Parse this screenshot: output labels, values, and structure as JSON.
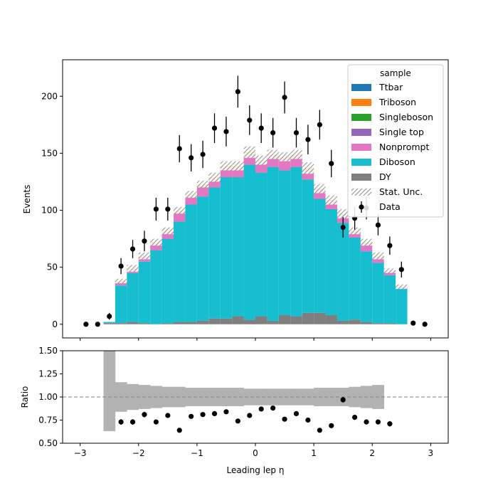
{
  "chart_data": [
    {
      "type": "bar",
      "stacked": true,
      "bin_edges": [
        -2.6,
        -2.4,
        -2.2,
        -2.0,
        -1.8,
        -1.6,
        -1.4,
        -1.2,
        -1.0,
        -0.8,
        -0.6,
        -0.4,
        -0.2,
        0.0,
        0.2,
        0.4,
        0.6,
        0.8,
        1.0,
        1.2,
        1.4,
        1.6,
        1.8,
        2.0,
        2.2,
        2.4,
        2.6
      ],
      "xlim": [
        -3.3,
        3.3
      ],
      "ylim": [
        -12,
        232
      ],
      "xticks": [
        -3,
        -2,
        -1,
        0,
        1,
        2,
        3
      ],
      "yticks": [
        0,
        50,
        100,
        150,
        200
      ],
      "ylabel": "Events",
      "legend": {
        "title": "sample",
        "placement": "top-right",
        "stat_unc_label": "Stat. Unc.",
        "data_label": "Data"
      },
      "series": [
        {
          "name": "DY",
          "color": "#7f7f7f",
          "values": [
            1,
            1,
            2,
            1,
            0,
            1,
            2,
            2,
            3,
            5,
            5,
            7,
            4,
            7,
            3,
            8,
            7,
            10,
            10,
            8,
            3,
            4,
            2,
            1,
            1,
            0
          ]
        },
        {
          "name": "Diboson",
          "color": "#17becf",
          "values": [
            1,
            33,
            43,
            54,
            65,
            74,
            88,
            103,
            109,
            115,
            124,
            122,
            136,
            126,
            135,
            127,
            131,
            117,
            100,
            93,
            86,
            72,
            62,
            53,
            42,
            31
          ]
        },
        {
          "name": "Nonprompt",
          "color": "#e377c2",
          "values": [
            0,
            2,
            3,
            3,
            5,
            5,
            7,
            6,
            8,
            6,
            7,
            7,
            8,
            8,
            8,
            9,
            8,
            7,
            7,
            5,
            6,
            4,
            6,
            4,
            3,
            1
          ]
        },
        {
          "name": "Single top",
          "color": "#9467bd",
          "values": [
            0,
            0,
            0,
            0,
            0,
            0,
            0,
            0,
            0,
            0,
            0,
            0,
            0,
            0,
            0,
            0,
            0,
            0,
            0,
            0,
            0,
            0,
            0,
            0,
            0,
            0
          ]
        },
        {
          "name": "Singleboson",
          "color": "#2ca02c",
          "values": [
            0,
            1,
            0,
            1,
            1,
            1,
            1,
            1,
            1,
            1,
            1,
            1,
            1,
            1,
            1,
            1,
            1,
            1,
            1,
            1,
            1,
            1,
            1,
            1,
            0,
            0
          ]
        },
        {
          "name": "Triboson",
          "color": "#ff7f0e",
          "values": [
            0,
            1,
            1,
            1,
            1,
            1,
            2,
            2,
            2,
            2,
            2,
            2,
            2,
            2,
            2,
            2,
            2,
            2,
            1,
            2,
            1,
            1,
            1,
            1,
            1,
            1
          ]
        },
        {
          "name": "Ttbar",
          "color": "#1f77b4",
          "values": [
            0,
            0,
            0,
            0,
            0,
            0,
            0,
            0,
            0,
            0,
            0,
            0,
            0,
            0,
            0,
            0,
            0,
            0,
            0,
            0,
            0,
            0,
            0,
            0,
            0,
            0
          ]
        }
      ],
      "stat_unc": [
        0,
        2,
        3,
        3,
        3,
        3,
        3,
        3,
        3,
        4,
        4,
        4,
        5,
        4,
        4,
        4,
        4,
        5,
        4,
        4,
        4,
        3,
        3,
        3,
        2,
        2
      ],
      "data": {
        "x": [
          -2.9,
          -2.7,
          -2.5,
          -2.3,
          -2.1,
          -1.9,
          -1.7,
          -1.5,
          -1.3,
          -1.1,
          -0.9,
          -0.7,
          -0.5,
          -0.3,
          -0.1,
          0.1,
          0.3,
          0.5,
          0.7,
          0.9,
          1.1,
          1.3,
          1.5,
          1.7,
          1.9,
          2.1,
          2.3,
          2.5,
          2.7,
          2.9
        ],
        "y": [
          0,
          0,
          7,
          51,
          66,
          73,
          101,
          101,
          154,
          146,
          149,
          172,
          169,
          204,
          179,
          172,
          168,
          199,
          168,
          162,
          175,
          141,
          85,
          93,
          102,
          87,
          69,
          48,
          1,
          0
        ],
        "err": [
          0,
          0,
          3,
          7,
          8,
          9,
          10,
          10,
          12,
          12,
          12,
          13,
          13,
          14,
          13,
          13,
          13,
          14,
          13,
          13,
          13,
          12,
          9,
          10,
          10,
          9,
          8,
          7,
          1,
          0
        ]
      }
    },
    {
      "type": "scatter",
      "xlim": [
        -3.3,
        3.3
      ],
      "ylim": [
        0.5,
        1.5
      ],
      "xticks": [
        -3,
        -2,
        -1,
        0,
        1,
        2,
        3
      ],
      "yticks": [
        0.5,
        0.75,
        1.0,
        1.25,
        1.5
      ],
      "ytick_labels": [
        "0.50",
        "0.75",
        "1.00",
        "1.25",
        "1.50"
      ],
      "xtick_labels": [
        "−3",
        "−2",
        "−1",
        "0",
        "1",
        "2",
        "3"
      ],
      "xlabel": "Leading lep η",
      "ylabel": "Ratio",
      "reference_line": 1.0,
      "band_bin_edges": [
        -2.6,
        -2.4,
        -2.2,
        -2.0,
        -1.8,
        -1.6,
        -1.4,
        -1.2,
        -1.0,
        -0.8,
        -0.6,
        -0.4,
        -0.2,
        0.0,
        0.2,
        0.4,
        0.6,
        0.8,
        1.0,
        1.2,
        1.4,
        1.6,
        1.8,
        2.0,
        2.2
      ],
      "band_low": [
        0.63,
        0.84,
        0.86,
        0.87,
        0.88,
        0.89,
        0.89,
        0.9,
        0.9,
        0.9,
        0.9,
        0.9,
        0.91,
        0.91,
        0.91,
        0.91,
        0.91,
        0.91,
        0.9,
        0.9,
        0.9,
        0.89,
        0.88,
        0.87
      ],
      "band_high": [
        1.5,
        1.16,
        1.14,
        1.13,
        1.12,
        1.11,
        1.11,
        1.1,
        1.1,
        1.1,
        1.1,
        1.1,
        1.09,
        1.09,
        1.09,
        1.09,
        1.09,
        1.09,
        1.1,
        1.1,
        1.1,
        1.11,
        1.12,
        1.13
      ],
      "x": [
        -2.3,
        -2.1,
        -1.9,
        -1.7,
        -1.5,
        -1.3,
        -1.1,
        -0.9,
        -0.7,
        -0.5,
        -0.3,
        -0.1,
        0.1,
        0.3,
        0.5,
        0.7,
        0.9,
        1.1,
        1.3,
        1.5,
        1.7,
        1.9,
        2.1,
        2.3
      ],
      "y": [
        0.73,
        0.73,
        0.81,
        0.73,
        0.8,
        0.64,
        0.79,
        0.81,
        0.82,
        0.84,
        0.74,
        0.8,
        0.87,
        0.88,
        0.76,
        0.82,
        0.75,
        0.64,
        0.69,
        0.97,
        0.78,
        0.73,
        0.73,
        0.71
      ],
      "err": [
        0.03,
        0.03,
        0.03,
        0.02,
        0.02,
        0.02,
        0.02,
        0.02,
        0.02,
        0.02,
        0.02,
        0.02,
        0.02,
        0.02,
        0.02,
        0.02,
        0.02,
        0.02,
        0.02,
        0.03,
        0.02,
        0.02,
        0.02,
        0.03
      ]
    }
  ]
}
